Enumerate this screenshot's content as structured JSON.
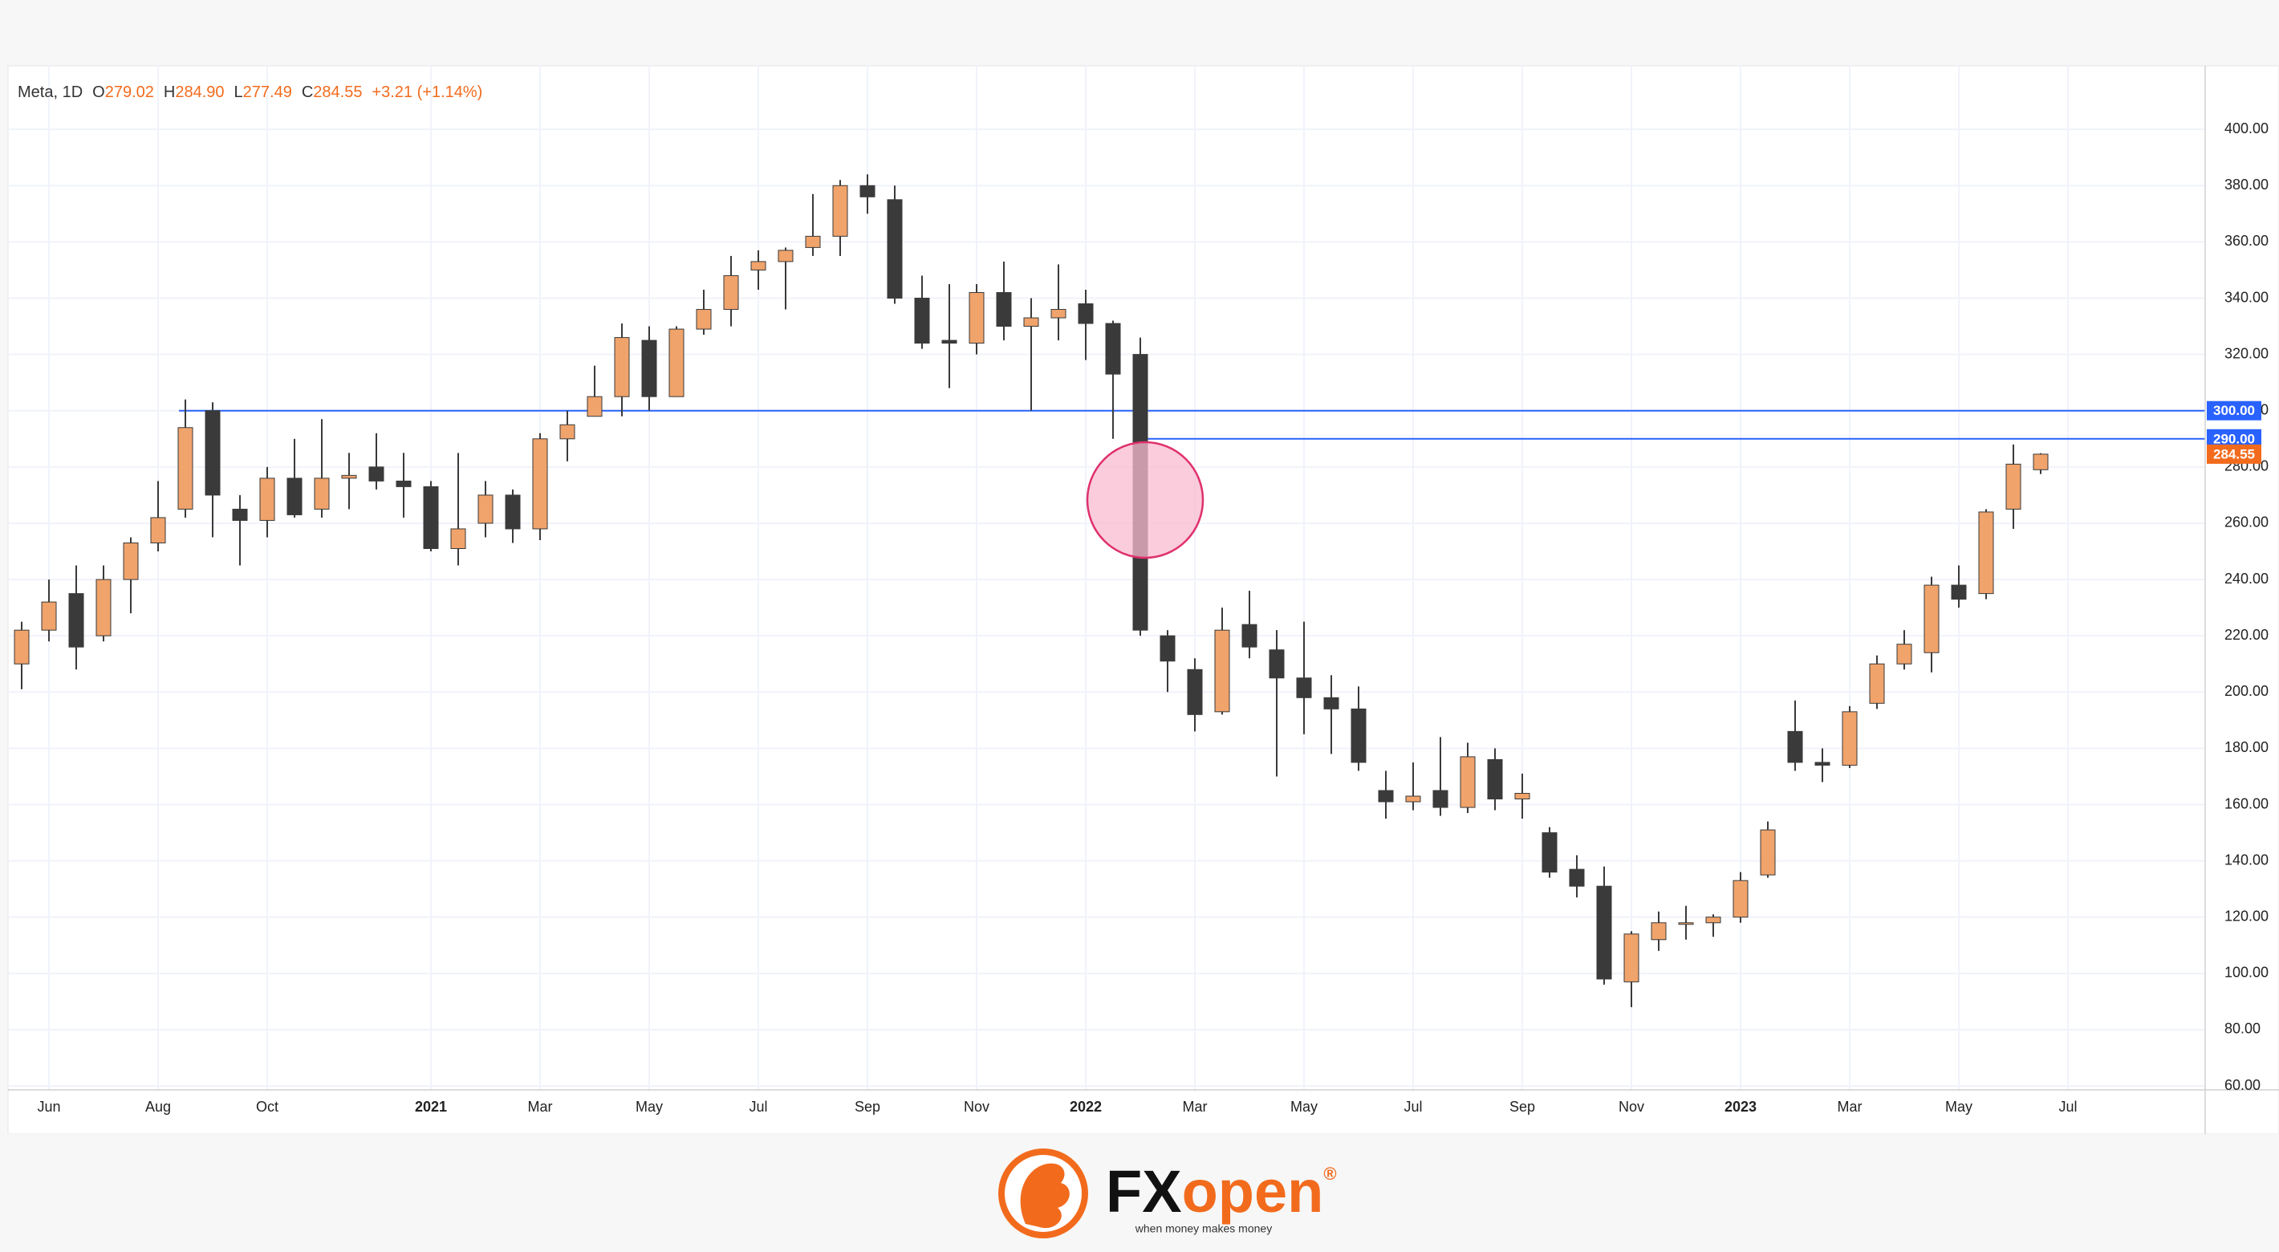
{
  "chart_data": {
    "type": "candlestick",
    "title": "Meta, 1D",
    "ohlc_legend": [
      {
        "prefix": "O",
        "value": 279.02
      },
      {
        "prefix": "H",
        "value": {
          "value": 284.9,
          "label": "284.90"
        }
      },
      {
        "prefix": "L",
        "value": 277.49
      },
      {
        "prefix": "C",
        "value": 284.55
      }
    ],
    "change": "+3.21 (+1.14%)",
    "categories": [
      null,
      "Jun",
      null,
      null,
      null,
      "Aug",
      null,
      null,
      null,
      "Oct",
      null,
      null,
      null,
      null,
      null,
      "2021",
      null,
      null,
      null,
      "Mar",
      null,
      null,
      null,
      "May",
      null,
      null,
      null,
      "Jul",
      null,
      null,
      null,
      "Sep",
      null,
      null,
      null,
      "Nov",
      null,
      null,
      null,
      "2022",
      null,
      null,
      null,
      "Mar",
      null,
      null,
      null,
      "May",
      null,
      null,
      null,
      "Jul",
      null,
      null,
      null,
      "Sep",
      null,
      null,
      null,
      "Nov",
      null,
      null,
      null,
      "2023",
      null,
      null,
      null,
      "Mar",
      null,
      null,
      null,
      "May",
      null,
      null,
      null,
      "Jul"
    ],
    "open": [
      210,
      222,
      235,
      220,
      240,
      253,
      265,
      300,
      265,
      261,
      276,
      265,
      276,
      280,
      275,
      273,
      251,
      260,
      270,
      258,
      290,
      298,
      305,
      325,
      305,
      329,
      336,
      350,
      353,
      358,
      362,
      380,
      375,
      340,
      325,
      324,
      342,
      330,
      333,
      338,
      331,
      320,
      220,
      208,
      193,
      224,
      215,
      205,
      198,
      194,
      165,
      161,
      165,
      159,
      176,
      162,
      150,
      137,
      131,
      97,
      112,
      118,
      118,
      120,
      135,
      186,
      175,
      174,
      196,
      210,
      214,
      238,
      235,
      265,
      279.02,
      null
    ],
    "high": [
      225,
      240,
      245,
      245,
      255,
      275,
      304,
      303,
      270,
      280,
      290,
      297,
      285,
      292,
      285,
      275,
      285,
      275,
      272,
      292,
      300,
      316,
      331,
      330,
      330,
      343,
      355,
      357,
      358,
      377,
      382,
      384,
      380,
      348,
      345,
      345,
      353,
      340,
      352,
      343,
      332,
      326,
      222,
      212,
      230,
      236,
      222,
      225,
      206,
      202,
      172,
      175,
      184,
      182,
      180,
      171,
      152,
      142,
      138,
      115,
      122,
      124,
      121,
      136,
      154,
      197,
      180,
      195,
      213,
      222,
      241,
      245,
      265,
      288,
      284.9,
      null
    ],
    "low": [
      201,
      218,
      208,
      218,
      228,
      250,
      262,
      255,
      245,
      255,
      262,
      262,
      265,
      272,
      262,
      250,
      245,
      255,
      253,
      254,
      282,
      298,
      298,
      300,
      305,
      327,
      330,
      343,
      336,
      355,
      355,
      370,
      338,
      322,
      308,
      320,
      325,
      300,
      325,
      318,
      290,
      220,
      200,
      186,
      192,
      212,
      170,
      185,
      178,
      172,
      155,
      158,
      156,
      157,
      158,
      155,
      134,
      127,
      96,
      88,
      108,
      112,
      113,
      118,
      134,
      172,
      168,
      173,
      194,
      208,
      207,
      230,
      233,
      258,
      277.49,
      null
    ],
    "close": [
      222,
      232,
      216,
      240,
      253,
      262,
      294,
      270,
      261,
      276,
      263,
      276,
      277,
      275,
      273,
      251,
      258,
      270,
      258,
      290,
      295,
      305,
      326,
      305,
      329,
      336,
      348,
      353,
      357,
      362,
      380,
      376,
      340,
      324,
      324,
      342,
      330,
      333,
      336,
      331,
      313,
      222,
      211,
      192,
      222,
      216,
      205,
      198,
      194,
      175,
      161,
      163,
      159,
      177,
      162,
      164,
      136,
      131,
      98,
      114,
      118,
      118,
      120,
      133,
      151,
      175,
      174,
      193,
      210,
      217,
      238,
      233,
      264,
      281,
      284.55,
      null
    ],
    "up_color": "#f0a36b",
    "down_color": "#3a3a3a",
    "ylim": [
      58.6,
      420.3
    ],
    "yticks": [
      {
        "value": 60,
        "label": "60.00"
      },
      {
        "value": 80,
        "label": "80.00"
      },
      {
        "value": 100,
        "label": "100.00"
      },
      {
        "value": 120,
        "label": "120.00"
      },
      {
        "value": 140,
        "label": "140.00"
      },
      {
        "value": 160,
        "label": "160.00"
      },
      {
        "value": 180,
        "label": "180.00"
      },
      {
        "value": 200,
        "label": "200.00"
      },
      {
        "value": 220,
        "label": "220.00"
      },
      {
        "value": 240,
        "label": "240.00"
      },
      {
        "value": 260,
        "label": "260.00"
      },
      {
        "value": 280,
        "label": "280.00"
      },
      {
        "value": 300,
        "label": "300.00"
      },
      {
        "value": 320,
        "label": "320.00"
      },
      {
        "value": 340,
        "label": "340.00"
      },
      {
        "value": 360,
        "label": "360.00"
      },
      {
        "value": 380,
        "label": "380.00"
      },
      {
        "value": 400,
        "label": "400.00"
      }
    ],
    "grid": true,
    "hlines": [
      {
        "value": 300,
        "label": "300.00",
        "color": "#2962ff"
      },
      {
        "value": 290,
        "label": "290.00",
        "color": "#2962ff"
      }
    ],
    "last_price": {
      "value": 284.55,
      "label": "284.55",
      "color": "#f26b1d"
    }
  },
  "footer": {
    "brand_left": "FX",
    "brand_right": "open",
    "registered": "®",
    "tagline": "when money makes money"
  }
}
